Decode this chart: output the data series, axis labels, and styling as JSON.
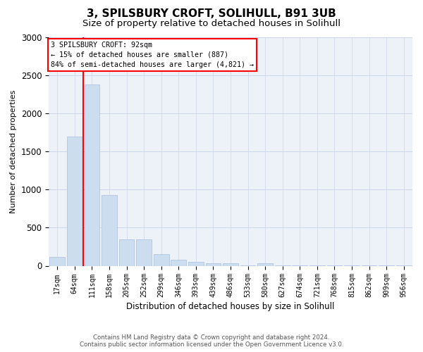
{
  "title": "3, SPILSBURY CROFT, SOLIHULL, B91 3UB",
  "subtitle": "Size of property relative to detached houses in Solihull",
  "xlabel": "Distribution of detached houses by size in Solihull",
  "ylabel": "Number of detached properties",
  "footer_line1": "Contains HM Land Registry data © Crown copyright and database right 2024.",
  "footer_line2": "Contains public sector information licensed under the Open Government Licence v3.0.",
  "bar_labels": [
    "17sqm",
    "64sqm",
    "111sqm",
    "158sqm",
    "205sqm",
    "252sqm",
    "299sqm",
    "346sqm",
    "393sqm",
    "439sqm",
    "486sqm",
    "533sqm",
    "580sqm",
    "627sqm",
    "674sqm",
    "721sqm",
    "768sqm",
    "815sqm",
    "862sqm",
    "909sqm",
    "956sqm"
  ],
  "bar_values": [
    115,
    1695,
    2380,
    930,
    350,
    350,
    155,
    80,
    55,
    35,
    35,
    5,
    35,
    5,
    5,
    5,
    5,
    5,
    5,
    5,
    5
  ],
  "bar_color": "#ccddf0",
  "bar_edgecolor": "#aabbdd",
  "vline_x": 1.5,
  "vline_color": "red",
  "annotation_text": "3 SPILSBURY CROFT: 92sqm\n← 15% of detached houses are smaller (887)\n84% of semi-detached houses are larger (4,821) →",
  "ylim": [
    0,
    3000
  ],
  "yticks": [
    0,
    500,
    1000,
    1500,
    2000,
    2500,
    3000
  ],
  "grid_color": "#ccd5e8",
  "bg_color": "#edf2f9",
  "title_fontsize": 11,
  "subtitle_fontsize": 9.5
}
